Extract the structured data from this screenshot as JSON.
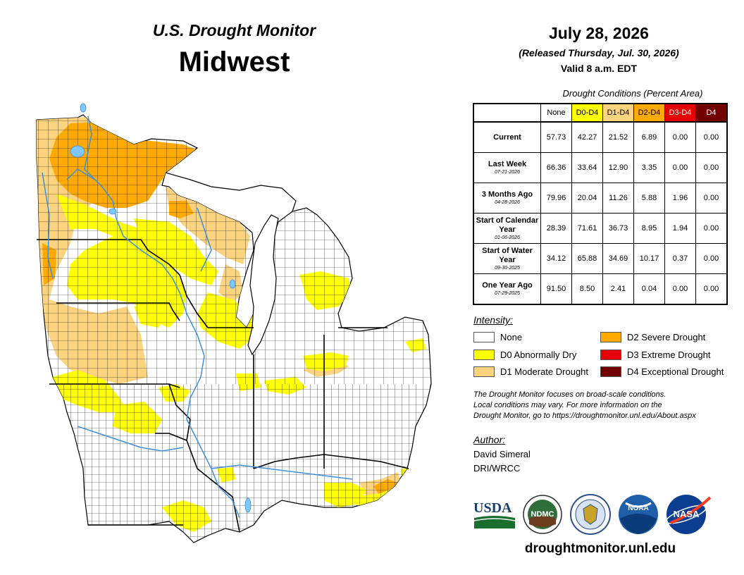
{
  "header": {
    "title_line1": "U.S. Drought Monitor",
    "title_line2": "Midwest",
    "date": "July 28, 2026",
    "released": "(Released Thursday, Jul. 30, 2026)",
    "valid": "Valid 8 a.m. EDT"
  },
  "conditions": {
    "caption": "Drought Conditions (Percent Area)",
    "columns": [
      {
        "label": "None",
        "color": "#ffffff",
        "text": "#000000"
      },
      {
        "label": "D0-D4",
        "color": "#ffff00",
        "text": "#000000"
      },
      {
        "label": "D1-D4",
        "color": "#fcd37f",
        "text": "#000000"
      },
      {
        "label": "D2-D4",
        "color": "#ffaa00",
        "text": "#000000"
      },
      {
        "label": "D3-D4",
        "color": "#e60000",
        "text": "#ffffff"
      },
      {
        "label": "D4",
        "color": "#730000",
        "text": "#ffffff"
      }
    ],
    "rows": [
      {
        "label": "Current",
        "sub": "",
        "values": [
          "57.73",
          "42.27",
          "21.52",
          "6.89",
          "0.00",
          "0.00"
        ]
      },
      {
        "label": "Last Week",
        "sub": "07-21-2026",
        "values": [
          "66.36",
          "33.64",
          "12.90",
          "3.35",
          "0.00",
          "0.00"
        ]
      },
      {
        "label": "3 Months Ago",
        "sub": "04-28-2026",
        "values": [
          "79.96",
          "20.04",
          "11.26",
          "5.88",
          "1.96",
          "0.00"
        ]
      },
      {
        "label": "Start of Calendar Year",
        "sub": "01-06-2026",
        "values": [
          "28.39",
          "71.61",
          "36.73",
          "8.95",
          "1.94",
          "0.00"
        ]
      },
      {
        "label": "Start of Water Year",
        "sub": "09-30-2025",
        "values": [
          "34.12",
          "65.88",
          "34.69",
          "10.17",
          "0.37",
          "0.00"
        ]
      },
      {
        "label": "One Year Ago",
        "sub": "07-29-2025",
        "values": [
          "91.50",
          "8.50",
          "2.41",
          "0.04",
          "0.00",
          "0.00"
        ]
      }
    ]
  },
  "legend": {
    "title": "Intensity:",
    "items": [
      {
        "label": "None",
        "color": "#ffffff"
      },
      {
        "label": "D0 Abnormally Dry",
        "color": "#ffff00"
      },
      {
        "label": "D1 Moderate Drought",
        "color": "#fcd37f"
      },
      {
        "label": "D2 Severe Drought",
        "color": "#ffaa00"
      },
      {
        "label": "D3 Extreme Drought",
        "color": "#e60000"
      },
      {
        "label": "D4 Exceptional Drought",
        "color": "#730000"
      }
    ]
  },
  "disclaimer": {
    "line1": "The Drought Monitor focuses on broad-scale conditions.",
    "line2": "Local conditions may vary. For more information on the",
    "line3": "Drought Monitor, go to https://droughtmonitor.unl.edu/About.aspx"
  },
  "author": {
    "label": "Author:",
    "name": "David Simeral",
    "org": "DRI/WRCC"
  },
  "logos": {
    "usda": "USDA",
    "ndmc": "NDMC",
    "noaa": "NOAA",
    "nasa": "NASA"
  },
  "website": "droughtmonitor.unl.edu",
  "map_colors": {
    "none": "#ffffff",
    "d0": "#ffff00",
    "d1": "#fcd37f",
    "d2": "#ffaa00",
    "water": "#7fc8ff",
    "river": "#3d8fe0"
  }
}
